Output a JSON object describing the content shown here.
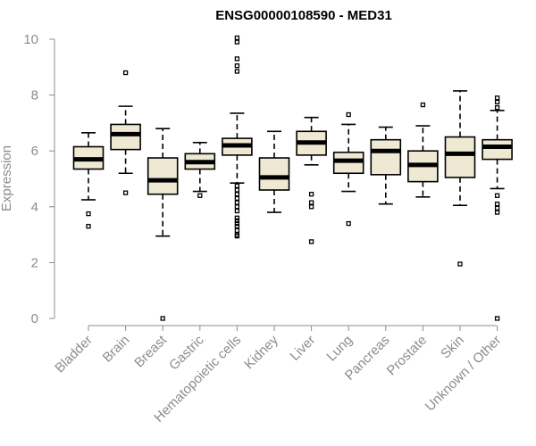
{
  "chart_data": {
    "type": "box",
    "title": "ENSG00000108590 - MED31",
    "ylabel": "Expression",
    "xlabel": "",
    "ylim": [
      0,
      10
    ],
    "yticks": [
      0,
      2,
      4,
      6,
      8,
      10
    ],
    "grid": false,
    "legend": "none",
    "colors": {
      "box_fill": "#efe9d3",
      "box_stroke": "#000000",
      "axis": "#8c8c8c"
    },
    "categories": [
      "Bladder",
      "Brain",
      "Breast",
      "Gastric",
      "Hematopoietic cells",
      "Kidney",
      "Liver",
      "Lung",
      "Pancreas",
      "Prostate",
      "Skin",
      "Unknown / Other"
    ],
    "boxes": [
      {
        "name": "Bladder",
        "q1": 5.35,
        "median": 5.7,
        "q3": 6.15,
        "whisker_low": 4.25,
        "whisker_high": 6.65,
        "outliers": [
          3.75,
          3.3
        ]
      },
      {
        "name": "Brain",
        "q1": 6.05,
        "median": 6.6,
        "q3": 6.95,
        "whisker_low": 5.2,
        "whisker_high": 7.6,
        "outliers": [
          8.8,
          4.5
        ]
      },
      {
        "name": "Breast",
        "q1": 4.45,
        "median": 4.95,
        "q3": 5.75,
        "whisker_low": 2.95,
        "whisker_high": 6.8,
        "outliers": [
          0.0
        ]
      },
      {
        "name": "Gastric",
        "q1": 5.35,
        "median": 5.6,
        "q3": 5.9,
        "whisker_low": 4.55,
        "whisker_high": 6.3,
        "outliers": [
          4.4
        ]
      },
      {
        "name": "Hematopoietic cells",
        "q1": 5.85,
        "median": 6.2,
        "q3": 6.45,
        "whisker_low": 4.85,
        "whisker_high": 7.35,
        "outliers": [
          10.05,
          9.9,
          9.3,
          9.05,
          8.85,
          4.75,
          4.6,
          4.45,
          4.3,
          4.15,
          4.0,
          3.85,
          3.6,
          3.5,
          3.4,
          3.3,
          3.15,
          3.0,
          2.95
        ]
      },
      {
        "name": "Kidney",
        "q1": 4.6,
        "median": 5.05,
        "q3": 5.75,
        "whisker_low": 3.8,
        "whisker_high": 6.7,
        "outliers": []
      },
      {
        "name": "Liver",
        "q1": 5.85,
        "median": 6.3,
        "q3": 6.7,
        "whisker_low": 5.5,
        "whisker_high": 7.2,
        "outliers": [
          4.45,
          4.15,
          4.0,
          2.75
        ]
      },
      {
        "name": "Lung",
        "q1": 5.2,
        "median": 5.65,
        "q3": 5.95,
        "whisker_low": 4.55,
        "whisker_high": 6.95,
        "outliers": [
          7.3,
          3.4
        ]
      },
      {
        "name": "Pancreas",
        "q1": 5.15,
        "median": 6.0,
        "q3": 6.4,
        "whisker_low": 4.1,
        "whisker_high": 6.85,
        "outliers": []
      },
      {
        "name": "Prostate",
        "q1": 4.9,
        "median": 5.5,
        "q3": 6.0,
        "whisker_low": 4.35,
        "whisker_high": 6.9,
        "outliers": [
          7.65
        ]
      },
      {
        "name": "Skin",
        "q1": 5.05,
        "median": 5.9,
        "q3": 6.5,
        "whisker_low": 4.05,
        "whisker_high": 8.15,
        "outliers": [
          1.95
        ]
      },
      {
        "name": "Unknown / Other",
        "q1": 5.7,
        "median": 6.15,
        "q3": 6.4,
        "whisker_low": 4.65,
        "whisker_high": 7.45,
        "outliers": [
          7.9,
          7.75,
          7.55,
          4.4,
          4.1,
          3.95,
          3.8,
          0.0
        ]
      }
    ]
  }
}
